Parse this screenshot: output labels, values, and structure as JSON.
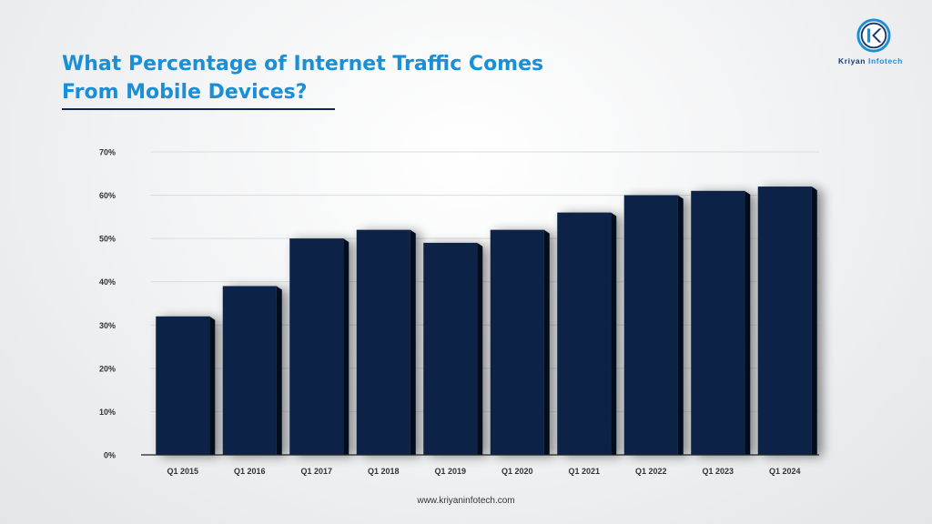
{
  "header": {
    "title_line1": "What Percentage of Internet Traffic Comes",
    "title_line2": "From Mobile Devices?"
  },
  "logo": {
    "letter": "K",
    "name_part1": "Kriyan ",
    "name_part2": "Infotech"
  },
  "footer": {
    "website": "www.kriyaninfotech.com"
  },
  "colors": {
    "title": "#1b8fd6",
    "bar": "#0d2346",
    "bar_side": "#050c1a",
    "grid": "#d9dcdf",
    "axis": "#333333"
  },
  "chart_data": {
    "type": "bar",
    "title": "What Percentage of Internet Traffic Comes From Mobile Devices?",
    "xlabel": "",
    "ylabel": "",
    "categories": [
      "Q1 2015",
      "Q1 2016",
      "Q1 2017",
      "Q1 2018",
      "Q1 2019",
      "Q1 2020",
      "Q1 2021",
      "Q1 2022",
      "Q1 2023",
      "Q1 2024"
    ],
    "values": [
      32,
      39,
      50,
      52,
      49,
      52,
      56,
      60,
      61,
      62
    ],
    "ylim": [
      0,
      70
    ],
    "yticks": [
      0,
      10,
      20,
      30,
      40,
      50,
      60,
      70
    ],
    "ytick_labels": [
      "0%",
      "10%",
      "20%",
      "30%",
      "40%",
      "50%",
      "60%",
      "70%"
    ],
    "grid": true,
    "legend": "none"
  }
}
